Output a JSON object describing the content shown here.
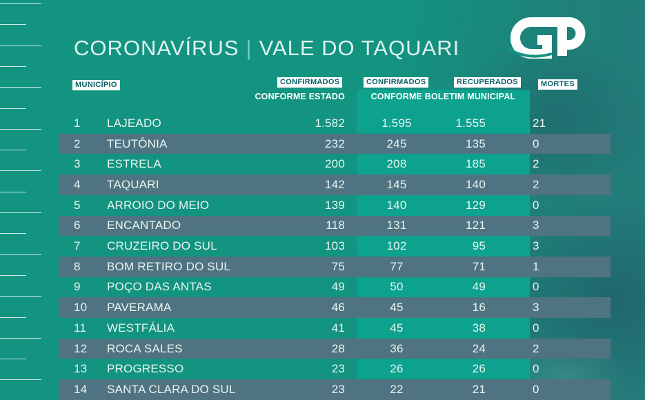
{
  "title": {
    "part1": "CORONAVÍRUS",
    "separator": "|",
    "part2": "VALE DO TAQUARI"
  },
  "logo": {
    "name": "GP"
  },
  "colors": {
    "background": "#129480",
    "band_green": "#0CA28D",
    "row_alt_slate": "#507381",
    "chip_background": "#FFFFFF",
    "chip_text": "#0B6168",
    "row_text": "#EAF5F1",
    "title_text": "#DFF2EE"
  },
  "table": {
    "headers": {
      "municipio": "MUNICÍPIO",
      "confirmados_estado": "CONFIRMADOS",
      "confirmados_estado_sub": "CONFORME ESTADO",
      "confirmados_municipal": "CONFIRMADOS",
      "recuperados": "RECUPERADOS",
      "municipal_sub": "CONFORME BOLETIM MUNICIPAL",
      "mortes": "MORTES"
    },
    "rows": [
      {
        "rank": "1",
        "municipio": "LAJEADO",
        "confirmados_estado": "1.582",
        "confirmados_municipal": "1.595",
        "recuperados": "1.555",
        "mortes": "21"
      },
      {
        "rank": "2",
        "municipio": "TEUTÔNIA",
        "confirmados_estado": "232",
        "confirmados_municipal": "245",
        "recuperados": "135",
        "mortes": "0"
      },
      {
        "rank": "3",
        "municipio": "ESTRELA",
        "confirmados_estado": "200",
        "confirmados_municipal": "208",
        "recuperados": "185",
        "mortes": "2"
      },
      {
        "rank": "4",
        "municipio": "TAQUARI",
        "confirmados_estado": "142",
        "confirmados_municipal": "145",
        "recuperados": "140",
        "mortes": "2"
      },
      {
        "rank": "5",
        "municipio": "ARROIO DO MEIO",
        "confirmados_estado": "139",
        "confirmados_municipal": "140",
        "recuperados": "129",
        "mortes": "0"
      },
      {
        "rank": "6",
        "municipio": "ENCANTADO",
        "confirmados_estado": "118",
        "confirmados_municipal": "131",
        "recuperados": "121",
        "mortes": "3"
      },
      {
        "rank": "7",
        "municipio": "CRUZEIRO DO SUL",
        "confirmados_estado": "103",
        "confirmados_municipal": "102",
        "recuperados": "95",
        "mortes": "3"
      },
      {
        "rank": "8",
        "municipio": "BOM RETIRO DO SUL",
        "confirmados_estado": "75",
        "confirmados_municipal": "77",
        "recuperados": "71",
        "mortes": "1"
      },
      {
        "rank": "9",
        "municipio": "POÇO DAS ANTAS",
        "confirmados_estado": "49",
        "confirmados_municipal": "50",
        "recuperados": "49",
        "mortes": "0"
      },
      {
        "rank": "10",
        "municipio": "PAVERAMA",
        "confirmados_estado": "46",
        "confirmados_municipal": "45",
        "recuperados": "16",
        "mortes": "3"
      },
      {
        "rank": "11",
        "municipio": "WESTFÁLIA",
        "confirmados_estado": "41",
        "confirmados_municipal": "45",
        "recuperados": "38",
        "mortes": "0"
      },
      {
        "rank": "12",
        "municipio": "ROCA SALES",
        "confirmados_estado": "28",
        "confirmados_municipal": "36",
        "recuperados": "24",
        "mortes": "2"
      },
      {
        "rank": "13",
        "municipio": "PROGRESSO",
        "confirmados_estado": "23",
        "confirmados_municipal": "26",
        "recuperados": "26",
        "mortes": "0"
      },
      {
        "rank": "14",
        "municipio": "SANTA CLARA DO SUL",
        "confirmados_estado": "23",
        "confirmados_municipal": "22",
        "recuperados": "21",
        "mortes": "0"
      }
    ]
  }
}
